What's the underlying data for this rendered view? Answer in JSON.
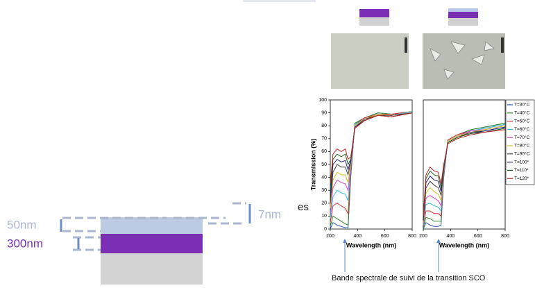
{
  "chart_data": [
    {
      "type": "line",
      "ylabel": "Transmission (%)",
      "xlabel": "Wavelength (nm)",
      "x": [
        200,
        220,
        250,
        280,
        310,
        330,
        350,
        380,
        450,
        550,
        650,
        800
      ],
      "xlim": [
        200,
        800
      ],
      "xticks": [
        200,
        400,
        600,
        800
      ],
      "ylim": [
        0,
        100
      ],
      "yticks": [
        0,
        10,
        20,
        30,
        40,
        50,
        60,
        70,
        80,
        90,
        100
      ],
      "series": [
        {
          "color": "#1f4fbf",
          "values": [
            0,
            5,
            3,
            2,
            1,
            1,
            40,
            82,
            86,
            90,
            89,
            91
          ]
        },
        {
          "color": "#2e8b2e",
          "values": [
            2,
            10,
            8,
            6,
            4,
            3,
            42,
            82,
            86,
            90,
            89,
            91
          ]
        },
        {
          "color": "#e03030",
          "values": [
            5,
            18,
            20,
            18,
            16,
            12,
            44,
            81,
            86,
            89,
            89,
            91
          ]
        },
        {
          "color": "#30c0e0",
          "values": [
            8,
            25,
            30,
            28,
            27,
            22,
            46,
            81,
            85,
            89,
            88,
            91
          ]
        },
        {
          "color": "#d040d0",
          "values": [
            12,
            32,
            38,
            36,
            35,
            30,
            48,
            80,
            85,
            89,
            88,
            90
          ]
        },
        {
          "color": "#d0c020",
          "values": [
            16,
            38,
            44,
            42,
            42,
            36,
            50,
            80,
            85,
            89,
            88,
            90
          ]
        },
        {
          "color": "#404040",
          "values": [
            20,
            44,
            50,
            48,
            48,
            42,
            52,
            79,
            85,
            88,
            88,
            90
          ]
        },
        {
          "color": "#202080",
          "values": [
            25,
            50,
            54,
            52,
            53,
            46,
            53,
            79,
            84,
            88,
            87,
            90
          ]
        },
        {
          "color": "#206020",
          "values": [
            30,
            54,
            58,
            56,
            58,
            50,
            54,
            78,
            84,
            88,
            87,
            90
          ]
        },
        {
          "color": "#c02020",
          "values": [
            35,
            58,
            62,
            60,
            62,
            54,
            56,
            78,
            84,
            88,
            87,
            90
          ]
        }
      ]
    },
    {
      "type": "line",
      "xlabel": "Wavelength (nm)",
      "legend": "right",
      "x": [
        200,
        220,
        250,
        280,
        310,
        330,
        350,
        380,
        450,
        550,
        650,
        800
      ],
      "xlim": [
        200,
        800
      ],
      "xticks": [
        200,
        400,
        600,
        800
      ],
      "ylim": [
        0,
        100
      ],
      "series": [
        {
          "name": "T=30°C",
          "color": "#1f4fbf",
          "values": [
            0,
            5,
            3,
            2,
            2,
            3,
            40,
            69,
            73,
            77,
            79,
            82
          ]
        },
        {
          "name": "T=40°C",
          "color": "#2e8b2e",
          "values": [
            1,
            9,
            8,
            6,
            6,
            6,
            41,
            69,
            73,
            77,
            79,
            82
          ]
        },
        {
          "name": "T=50°C",
          "color": "#e03030",
          "values": [
            2,
            14,
            14,
            12,
            12,
            10,
            42,
            69,
            73,
            76,
            78,
            81
          ]
        },
        {
          "name": "T=60°C",
          "color": "#30c0e0",
          "values": [
            3,
            19,
            20,
            18,
            17,
            14,
            43,
            68,
            72,
            76,
            78,
            81
          ]
        },
        {
          "name": "T=70°C",
          "color": "#d040d0",
          "values": [
            4,
            24,
            26,
            24,
            22,
            18,
            44,
            68,
            72,
            76,
            77,
            80
          ]
        },
        {
          "name": "T=80°C",
          "color": "#d0c020",
          "values": [
            5,
            28,
            32,
            29,
            27,
            22,
            45,
            68,
            72,
            75,
            77,
            80
          ]
        },
        {
          "name": "T=90°C",
          "color": "#404040",
          "values": [
            6,
            32,
            37,
            34,
            32,
            26,
            46,
            67,
            71,
            75,
            76,
            79
          ]
        },
        {
          "name": "T=100*",
          "color": "#202080",
          "values": [
            7,
            36,
            41,
            38,
            37,
            29,
            47,
            67,
            71,
            74,
            76,
            79
          ]
        },
        {
          "name": "T=110*",
          "color": "#206020",
          "values": [
            8,
            39,
            45,
            42,
            41,
            32,
            48,
            67,
            71,
            74,
            75,
            78
          ]
        },
        {
          "name": "T=120*",
          "color": "#c02020",
          "values": [
            10,
            42,
            48,
            45,
            44,
            35,
            50,
            66,
            70,
            73,
            75,
            77
          ]
        }
      ]
    }
  ],
  "texts": {
    "fragment": "es",
    "top_label": "50nm",
    "mid_label": "300nm",
    "side_label": "7nm",
    "caption": "Bande spectrale de suivi de la transition SCO"
  }
}
